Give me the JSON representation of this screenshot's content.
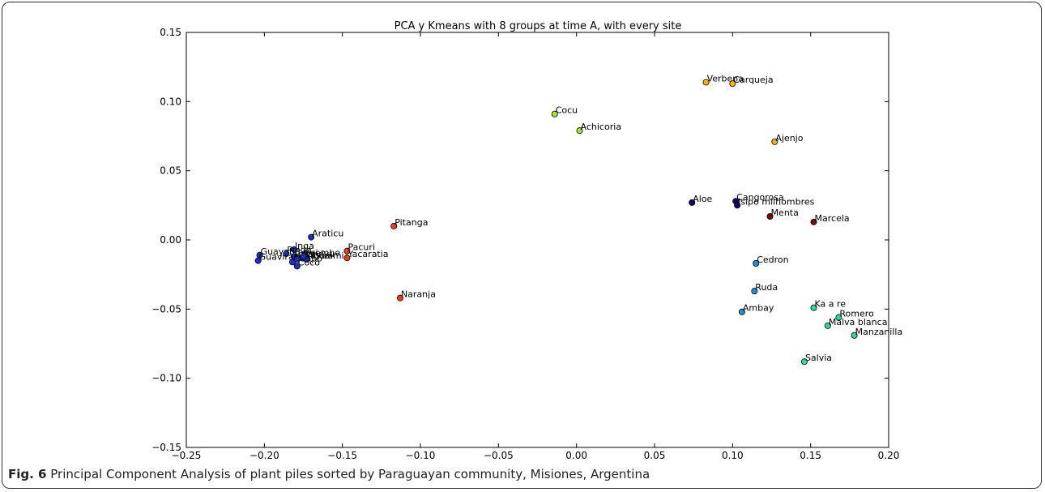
{
  "caption": {
    "label": "Fig. 6",
    "text": "Principal Component Analysis of plant piles sorted by Paraguayan community, Misiones, Argentina"
  },
  "chart_data": {
    "type": "scatter",
    "title": "PCA y Kmeans with 8 groups at time A, with every site",
    "xlabel": "",
    "ylabel": "",
    "xlim": [
      -0.25,
      0.2
    ],
    "ylim": [
      -0.15,
      0.15
    ],
    "x_ticks": [
      "−0.25",
      "−0.20",
      "−0.15",
      "−0.10",
      "−0.05",
      "0.00",
      "0.05",
      "0.10",
      "0.15",
      "0.20"
    ],
    "y_ticks": [
      "−0.15",
      "−0.10",
      "−0.05",
      "0.00",
      "0.05",
      "0.10",
      "0.15"
    ],
    "grid": false,
    "legend": "none",
    "groups": [
      {
        "color": "#0a0a6e",
        "points": [
          {
            "label": "Aloe",
            "x": 0.074,
            "y": 0.027
          },
          {
            "label": "Cangorosa",
            "x": 0.102,
            "y": 0.028
          },
          {
            "label": "Isipo milhombres",
            "x": 0.103,
            "y": 0.025
          }
        ]
      },
      {
        "color": "#1a2ecc",
        "points": [
          {
            "label": "Araticu",
            "x": -0.17,
            "y": 0.002
          },
          {
            "label": "Inga",
            "x": -0.181,
            "y": -0.007
          },
          {
            "label": "Guayaba",
            "x": -0.203,
            "y": -0.011
          },
          {
            "label": "Pindo",
            "x": -0.186,
            "y": -0.01
          },
          {
            "label": "Cerei",
            "x": -0.181,
            "y": -0.012
          },
          {
            "label": "Guaviraimi",
            "x": -0.204,
            "y": -0.015
          },
          {
            "label": "Guapo",
            "x": -0.182,
            "y": -0.016
          },
          {
            "label": "Aguai",
            "x": -0.173,
            "y": -0.014
          },
          {
            "label": "Ivaviyu",
            "x": -0.176,
            "y": -0.013
          },
          {
            "label": "Guavirami",
            "x": -0.179,
            "y": -0.014
          },
          {
            "label": "Yvembe",
            "x": -0.175,
            "y": -0.012
          },
          {
            "label": "Coco",
            "x": -0.179,
            "y": -0.019
          }
        ]
      },
      {
        "color": "#1e90e0",
        "points": [
          {
            "label": "Cedron",
            "x": 0.115,
            "y": -0.017
          },
          {
            "label": "Ruda",
            "x": 0.114,
            "y": -0.037
          },
          {
            "label": "Ambay",
            "x": 0.106,
            "y": -0.052
          }
        ]
      },
      {
        "color": "#2fd6a0",
        "points": [
          {
            "label": "Ka a re",
            "x": 0.152,
            "y": -0.049
          },
          {
            "label": "Romero",
            "x": 0.168,
            "y": -0.056
          },
          {
            "label": "Malva blanca",
            "x": 0.161,
            "y": -0.062
          },
          {
            "label": "Manzanilla",
            "x": 0.178,
            "y": -0.069
          },
          {
            "label": "Salvia",
            "x": 0.146,
            "y": -0.088
          }
        ]
      },
      {
        "color": "#a8e61e",
        "points": [
          {
            "label": "Cocu",
            "x": -0.014,
            "y": 0.091
          },
          {
            "label": "Achicoria",
            "x": 0.002,
            "y": 0.079
          }
        ]
      },
      {
        "color": "#ffb000",
        "points": [
          {
            "label": "Verbena",
            "x": 0.083,
            "y": 0.114
          },
          {
            "label": "Carqueja",
            "x": 0.1,
            "y": 0.113
          },
          {
            "label": "Ajenjo",
            "x": 0.127,
            "y": 0.071
          }
        ]
      },
      {
        "color": "#f03a10",
        "points": [
          {
            "label": "Pitanga",
            "x": -0.117,
            "y": 0.01
          },
          {
            "label": "Pacuri",
            "x": -0.147,
            "y": -0.008
          },
          {
            "label": "Yacaratia",
            "x": -0.147,
            "y": -0.013
          },
          {
            "label": "Naranja",
            "x": -0.113,
            "y": -0.042
          }
        ]
      },
      {
        "color": "#7a0a0a",
        "points": [
          {
            "label": "Menta",
            "x": 0.124,
            "y": 0.017
          },
          {
            "label": "Marcela",
            "x": 0.152,
            "y": 0.013
          }
        ]
      }
    ]
  }
}
